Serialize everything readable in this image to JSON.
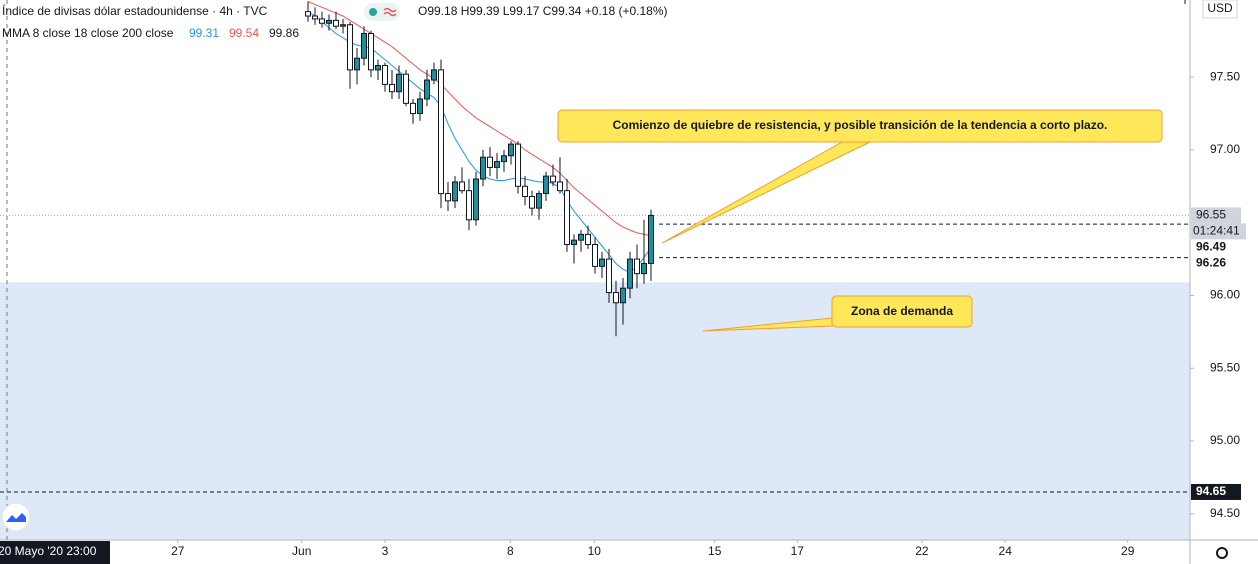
{
  "chart_data": {
    "type": "candlestick",
    "title": "Índice de divisas dólar estadounidense · 4h · TVC",
    "ohlc_text": "O99.18 H99.39 L99.17 C99.34 +0.18 (+0.18%)",
    "indicator_label": "MMA 8 close 18 close 200 close",
    "currency": "USD",
    "crosshair_label": "20 Mayo '20   23:00",
    "up_color": "#1f8fa0",
    "down_color": "#ffffff",
    "xlim": [
      0,
      170
    ],
    "ylim": [
      94.32,
      98.03
    ],
    "xticks": [
      {
        "value": 25.4,
        "label": "27"
      },
      {
        "value": 43.1,
        "label": "Jun"
      },
      {
        "value": 55,
        "label": "3"
      },
      {
        "value": 72.9,
        "label": "8"
      },
      {
        "value": 84.9,
        "label": "10"
      },
      {
        "value": 102.1,
        "label": "15"
      },
      {
        "value": 113.9,
        "label": "17"
      },
      {
        "value": 131.7,
        "label": "22"
      },
      {
        "value": 143.6,
        "label": "24"
      },
      {
        "value": 161.1,
        "label": "29"
      }
    ],
    "yticks": [
      {
        "value": 94.5,
        "label": "94.50"
      },
      {
        "value": 95,
        "label": "95.00"
      },
      {
        "value": 95.5,
        "label": "95.50"
      },
      {
        "value": 96,
        "label": "96.00"
      },
      {
        "value": 96.5,
        "label": "96.50"
      },
      {
        "value": 97,
        "label": "97.00"
      },
      {
        "value": 97.5,
        "label": "97.50"
      }
    ],
    "x": [
      44,
      45,
      46,
      47,
      48,
      49,
      50,
      51,
      52,
      53,
      54,
      55,
      56,
      57,
      58,
      59,
      60,
      61,
      62,
      63,
      64,
      65,
      66,
      67,
      68,
      69,
      70,
      71,
      72,
      73,
      74,
      75,
      76,
      77,
      78,
      79,
      80,
      81,
      82,
      83,
      84,
      85,
      86,
      87,
      88,
      89,
      90,
      91,
      92,
      93
    ],
    "open": [
      97.95,
      97.92,
      97.9,
      97.87,
      97.89,
      97.85,
      97.86,
      97.55,
      97.63,
      97.8,
      97.55,
      97.58,
      97.45,
      97.4,
      97.52,
      97.32,
      97.25,
      97.35,
      97.48,
      97.55,
      96.7,
      96.65,
      96.78,
      96.72,
      96.52,
      96.8,
      96.95,
      96.88,
      96.92,
      96.96,
      97.04,
      96.75,
      96.68,
      96.6,
      96.7,
      96.82,
      96.78,
      96.72,
      96.35,
      96.38,
      96.42,
      96.35,
      96.2,
      96.25,
      96.02,
      95.95,
      96.05,
      96.25,
      96.15,
      96.22
    ],
    "high": [
      98.02,
      97.98,
      97.95,
      97.93,
      97.95,
      97.9,
      97.88,
      97.7,
      97.85,
      97.82,
      97.62,
      97.6,
      97.55,
      97.58,
      97.55,
      97.35,
      97.4,
      97.55,
      97.6,
      97.62,
      96.78,
      96.82,
      96.88,
      96.8,
      96.85,
      97.0,
      97.02,
      96.98,
      97.0,
      97.06,
      97.06,
      96.82,
      96.72,
      96.72,
      96.85,
      96.9,
      96.95,
      96.8,
      96.42,
      96.45,
      96.48,
      96.4,
      96.3,
      96.32,
      96.1,
      96.12,
      96.3,
      96.35,
      96.52,
      96.59
    ],
    "low": [
      97.88,
      97.86,
      97.84,
      97.82,
      97.83,
      97.8,
      97.42,
      97.45,
      97.58,
      97.5,
      97.48,
      97.4,
      97.35,
      97.35,
      97.3,
      97.18,
      97.2,
      97.3,
      97.45,
      96.6,
      96.58,
      96.6,
      96.7,
      96.45,
      96.48,
      96.75,
      96.82,
      96.8,
      96.85,
      96.9,
      96.7,
      96.62,
      96.55,
      96.52,
      96.65,
      96.75,
      96.7,
      96.3,
      96.22,
      96.3,
      96.32,
      96.15,
      96.12,
      95.95,
      95.72,
      95.8,
      95.98,
      96.05,
      96.08,
      96.1
    ],
    "close": [
      97.92,
      97.9,
      97.87,
      97.89,
      97.85,
      97.86,
      97.55,
      97.63,
      97.8,
      97.55,
      97.58,
      97.45,
      97.4,
      97.52,
      97.32,
      97.25,
      97.35,
      97.48,
      97.55,
      96.7,
      96.65,
      96.78,
      96.72,
      96.52,
      96.8,
      96.95,
      96.88,
      96.92,
      96.96,
      97.04,
      96.75,
      96.68,
      96.6,
      96.7,
      96.82,
      96.78,
      96.72,
      96.35,
      96.38,
      96.42,
      96.35,
      96.2,
      96.25,
      96.02,
      95.95,
      96.05,
      96.25,
      96.15,
      96.22,
      96.55
    ],
    "ma": [
      {
        "color": "#2196f3",
        "legend_value": 99.31,
        "values": [
          97.95,
          97.92,
          97.88,
          97.84,
          97.8,
          97.77,
          97.74,
          97.72,
          97.71,
          97.7,
          97.66,
          97.62,
          97.58,
          97.54,
          97.5,
          97.46,
          97.42,
          97.39,
          97.36,
          97.3,
          97.18,
          97.08,
          97.0,
          96.92,
          96.86,
          96.82,
          96.8,
          96.79,
          96.79,
          96.8,
          96.81,
          96.8,
          96.79,
          96.78,
          96.78,
          96.77,
          96.74,
          96.65,
          96.58,
          96.52,
          96.46,
          96.4,
          96.34,
          96.28,
          96.22,
          96.18,
          96.16,
          96.2,
          96.26,
          96.33
        ]
      },
      {
        "color": "#ef5350",
        "legend_value": 99.54,
        "values": [
          98.02,
          98.0,
          97.98,
          97.96,
          97.94,
          97.92,
          97.89,
          97.86,
          97.83,
          97.8,
          97.77,
          97.74,
          97.71,
          97.67,
          97.63,
          97.59,
          97.55,
          97.52,
          97.49,
          97.45,
          97.4,
          97.35,
          97.3,
          97.26,
          97.22,
          97.19,
          97.16,
          97.13,
          97.1,
          97.07,
          97.04,
          97.0,
          96.97,
          96.94,
          96.91,
          96.88,
          96.84,
          96.79,
          96.74,
          96.7,
          96.66,
          96.62,
          96.58,
          96.54,
          96.5,
          96.47,
          96.45,
          96.43,
          96.42,
          96.41
        ]
      },
      {
        "color": "#131722",
        "legend_value": 99.86
      }
    ],
    "demand_zone_top": 96.09,
    "levels": [
      96.49,
      96.26,
      94.65
    ],
    "price_labels": [
      96.55,
      96.49,
      96.26,
      94.65
    ],
    "countdown": "01:24:41",
    "annotations": [
      "Comienzo de quiebre de resistencia, y posible transición de la tendencia a corto plazo.",
      "Zona de demanda"
    ]
  }
}
